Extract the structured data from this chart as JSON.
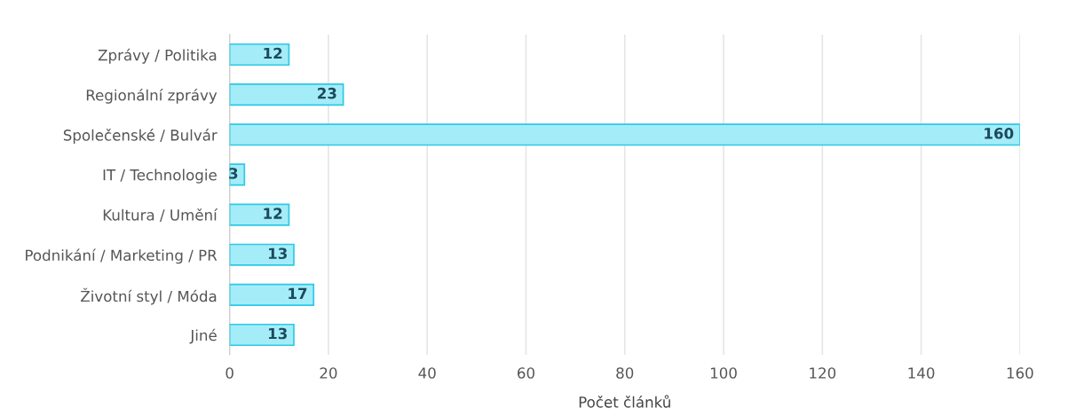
{
  "chart_data": {
    "type": "bar",
    "orientation": "horizontal",
    "xlabel": "Počet článků",
    "categories": [
      "Zprávy / Politika",
      "Regionální zprávy",
      "Společenské / Bulvár",
      "IT / Technologie",
      "Kultura / Umění",
      "Podnikání / Marketing / PR",
      "Životní styl / Móda",
      "Jiné"
    ],
    "values": [
      12,
      23,
      160,
      3,
      12,
      13,
      17,
      13
    ],
    "color": "#a4ecf8",
    "xlim": [
      0,
      160
    ],
    "xticks": [
      0,
      20,
      40,
      60,
      80,
      100,
      120,
      140,
      160
    ],
    "grid": "x",
    "data_labels": true
  }
}
